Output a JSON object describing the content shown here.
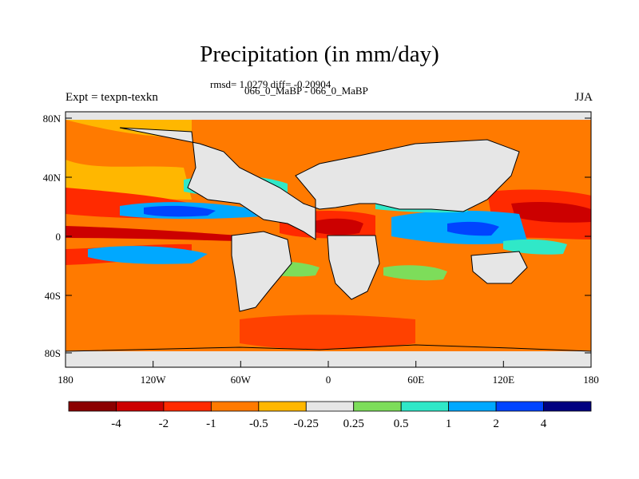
{
  "title": "Precipitation (in mm/day)",
  "stats_line": "rmsd= 1.0279 diff= -0.20904",
  "subtitle": "066_0_MaBP - 066_0_MaBP",
  "left_label": "Expt = texpn-texkn",
  "right_label": "JJA",
  "lat_ticks": [
    "80N",
    "40N",
    "0",
    "40S",
    "80S"
  ],
  "lon_ticks": [
    "180",
    "120W",
    "60W",
    "0",
    "60E",
    "120E",
    "180"
  ],
  "colorbar": {
    "colors": [
      "#8b0000",
      "#cc0000",
      "#ff2a00",
      "#ff7a00",
      "#ffb700",
      "#e6e6e6",
      "#7ddd5a",
      "#30e8c8",
      "#00a8ff",
      "#0044ff",
      "#000080"
    ],
    "labels": [
      "-4",
      "-2",
      "-1",
      "-0.5",
      "-0.25",
      "0.25",
      "0.5",
      "1",
      "2",
      "4"
    ]
  },
  "colors": {
    "land": "#e6e6e6",
    "ocean_dry": "#ff7a00",
    "coast": "#000000"
  }
}
